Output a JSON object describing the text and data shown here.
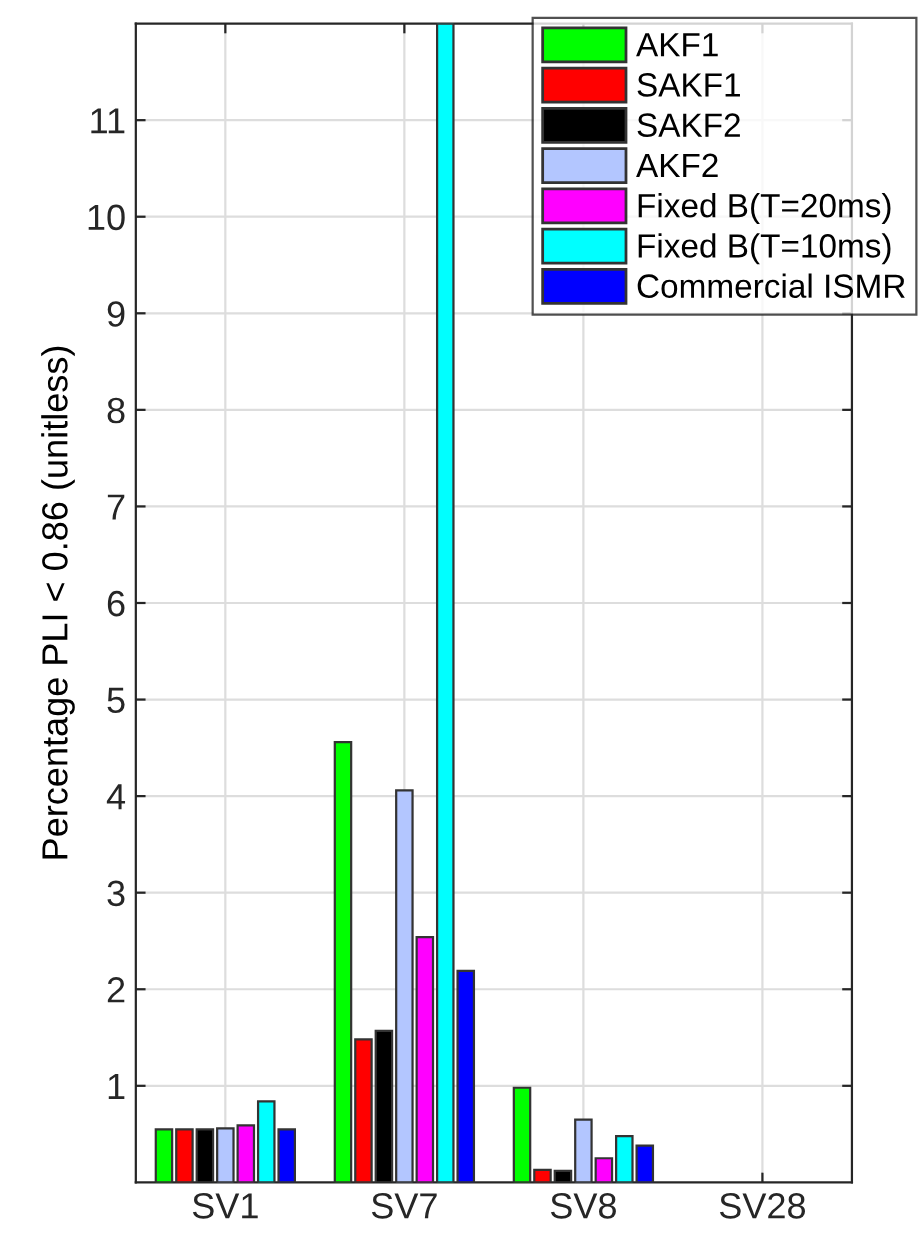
{
  "chart_data": {
    "type": "bar",
    "ylabel": "Percentage PLI < 0.86 (unitless)",
    "categories": [
      "SV1",
      "SV7",
      "SV8",
      "SV28"
    ],
    "series": [
      {
        "name": "AKF1",
        "color": "#00ff00",
        "values": [
          0.55,
          4.56,
          0.98,
          null
        ]
      },
      {
        "name": "SAKF1",
        "color": "#ff0000",
        "values": [
          0.55,
          1.48,
          0.13,
          null
        ]
      },
      {
        "name": "SAKF2",
        "color": "#000000",
        "values": [
          0.55,
          1.57,
          0.12,
          null
        ]
      },
      {
        "name": "AKF2",
        "color": "#b3c6ff",
        "values": [
          0.56,
          4.06,
          0.65,
          null
        ]
      },
      {
        "name": "Fixed B(T=20ms)",
        "color": "#ff00ff",
        "values": [
          0.59,
          2.54,
          0.25,
          null
        ]
      },
      {
        "name": "Fixed B(T=10ms)",
        "color": "#00ffff",
        "values": [
          0.84,
          12,
          0.48,
          null
        ]
      },
      {
        "name": "Commercial ISMR",
        "color": "#0000ff",
        "values": [
          0.55,
          2.19,
          0.38,
          null
        ]
      }
    ],
    "ylim": [
      0,
      12
    ],
    "yticks": [
      1,
      2,
      3,
      4,
      5,
      6,
      7,
      8,
      9,
      10,
      11
    ],
    "grid": true,
    "legend": "top right"
  }
}
